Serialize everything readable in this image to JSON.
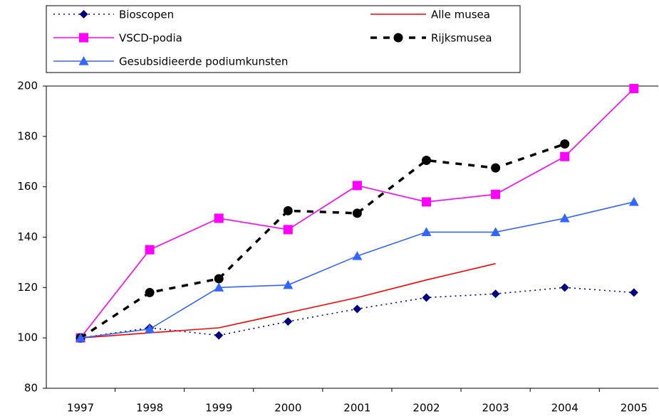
{
  "chart_data": {
    "type": "line",
    "categories": [
      "1997",
      "1998",
      "1999",
      "2000",
      "2001",
      "2002",
      "2003",
      "2004",
      "2005"
    ],
    "series": [
      {
        "name": "Bioscopen",
        "color": "#000080",
        "values": [
          100,
          104,
          101,
          106.5,
          111.5,
          116,
          117.5,
          120,
          118
        ]
      },
      {
        "name": "Alle musea",
        "color": "#ff0000",
        "values": [
          100,
          102,
          104,
          110,
          116,
          123,
          129.5,
          null,
          null
        ]
      },
      {
        "name": "VSCD-podia",
        "color": "#ff00ff",
        "values": [
          100,
          135,
          147.5,
          143,
          160.5,
          154,
          157,
          172,
          199
        ]
      },
      {
        "name": "Rijksmusea",
        "color": "#000000",
        "values": [
          100,
          118,
          123.5,
          150.5,
          149.5,
          170.5,
          167.5,
          177,
          null
        ]
      },
      {
        "name": "Gesubsidieerde podiumkunsten",
        "color": "#3366ff",
        "values": [
          100,
          103.5,
          120,
          121,
          132.5,
          142,
          142,
          147.5,
          154
        ]
      }
    ],
    "ylim": [
      80,
      200
    ],
    "yticks": [
      80,
      100,
      120,
      140,
      160,
      180,
      200
    ],
    "grid": false
  }
}
